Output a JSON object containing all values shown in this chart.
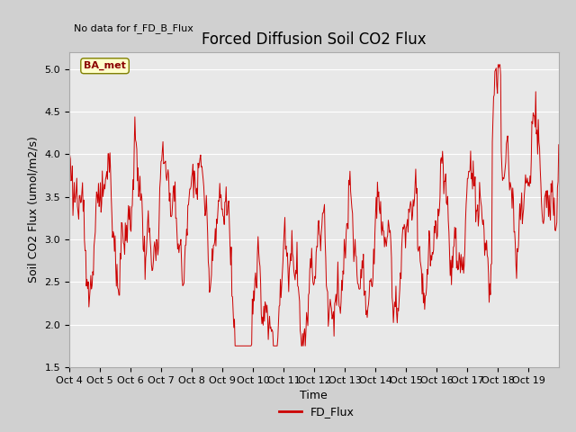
{
  "title": "Forced Diffusion Soil CO2 Flux",
  "subtitle": "No data for f_FD_B_Flux",
  "ylabel": "Soil CO2 Flux (umol/m2/s)",
  "xlabel": "Time",
  "legend_label": "FD_Flux",
  "ba_met_label": "BA_met",
  "ylim": [
    1.5,
    5.2
  ],
  "yticks": [
    1.5,
    2.0,
    2.5,
    3.0,
    3.5,
    4.0,
    4.5,
    5.0
  ],
  "line_color": "#cc0000",
  "legend_line_color": "#cc0000",
  "plot_bg_color": "#e8e8e8",
  "fig_bg_color": "#d0d0d0",
  "grid_color": "#ffffff",
  "title_fontsize": 12,
  "label_fontsize": 9,
  "tick_fontsize": 8
}
